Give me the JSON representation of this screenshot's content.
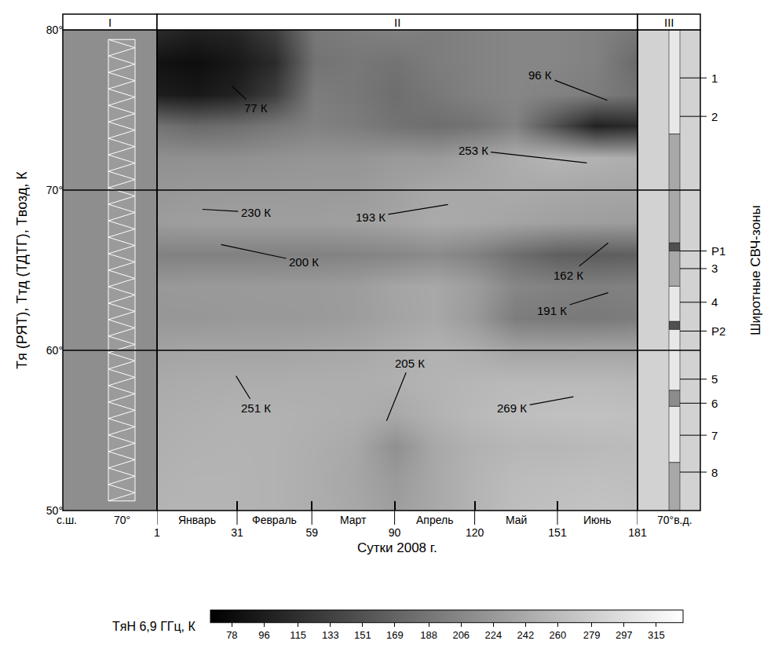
{
  "chart_data": {
    "type": "heatmap",
    "x_label": "Сутки 2008 г.",
    "y_label": "Tя (РЯТ), Tтд (ТДТГ), Tвозд, К",
    "x": [
      1,
      15,
      30,
      45,
      60,
      75,
      90,
      105,
      120,
      135,
      150,
      165,
      181
    ],
    "y": [
      50,
      52,
      54,
      56,
      58,
      60,
      62,
      64,
      66,
      68,
      70,
      72,
      74,
      76,
      78,
      80
    ],
    "z": [
      [
        252,
        253,
        252,
        250,
        245,
        240,
        230,
        240,
        252,
        262,
        265,
        268,
        266
      ],
      [
        250,
        252,
        252,
        250,
        245,
        238,
        225,
        240,
        252,
        260,
        262,
        264,
        262
      ],
      [
        248,
        250,
        251,
        250,
        246,
        240,
        215,
        240,
        250,
        255,
        255,
        258,
        260
      ],
      [
        246,
        248,
        250,
        250,
        248,
        246,
        240,
        250,
        258,
        262,
        265,
        266,
        264
      ],
      [
        242,
        244,
        245,
        245,
        246,
        246,
        248,
        252,
        255,
        258,
        258,
        258,
        256
      ],
      [
        235,
        236,
        236,
        236,
        238,
        240,
        245,
        250,
        245,
        235,
        235,
        236,
        236
      ],
      [
        222,
        222,
        224,
        224,
        225,
        228,
        235,
        240,
        225,
        195,
        192,
        191,
        195
      ],
      [
        224,
        225,
        225,
        226,
        226,
        228,
        236,
        240,
        228,
        205,
        200,
        198,
        200
      ],
      [
        200,
        200,
        200,
        200,
        200,
        202,
        205,
        210,
        200,
        180,
        165,
        162,
        165
      ],
      [
        228,
        230,
        230,
        230,
        230,
        232,
        236,
        242,
        240,
        236,
        232,
        230,
        228
      ],
      [
        222,
        224,
        225,
        225,
        226,
        226,
        232,
        240,
        240,
        242,
        240,
        238,
        238
      ],
      [
        215,
        215,
        215,
        218,
        220,
        220,
        225,
        225,
        235,
        245,
        253,
        250,
        245
      ],
      [
        185,
        175,
        180,
        190,
        200,
        195,
        185,
        180,
        185,
        200,
        150,
        100,
        110
      ],
      [
        95,
        90,
        100,
        130,
        195,
        190,
        180,
        190,
        200,
        205,
        200,
        195,
        185
      ],
      [
        85,
        80,
        90,
        110,
        185,
        190,
        185,
        195,
        200,
        205,
        205,
        200,
        175
      ],
      [
        110,
        100,
        105,
        130,
        190,
        195,
        200,
        195,
        200,
        205,
        205,
        200,
        190
      ]
    ],
    "xlim": [
      1,
      181
    ],
    "xticks": [
      1,
      31,
      59,
      90,
      120,
      151,
      181
    ],
    "ylim": [
      50,
      80
    ],
    "yticks": [
      {
        "value": 50,
        "label": "50°"
      },
      {
        "value": 60,
        "label": "60°"
      },
      {
        "value": 70,
        "label": "70°"
      },
      {
        "value": 80,
        "label": "80°"
      }
    ],
    "months": [
      "Январь",
      "Февраль",
      "Март",
      "Апрель",
      "Май",
      "Июнь"
    ],
    "colorbar_label": "TяH 6,9 ГГц, К",
    "colorbar_range": [
      66,
      330
    ],
    "colorbar_ticks": [
      78,
      96,
      115,
      133,
      151,
      169,
      188,
      206,
      224,
      242,
      260,
      279,
      297,
      315
    ],
    "reference_lines": [
      60,
      70
    ],
    "annotations": [
      {
        "text": "77 К",
        "x": 29,
        "y": 76.5,
        "label_x": 38,
        "label_y": 75.1
      },
      {
        "text": "96 К",
        "x": 169.7,
        "y": 75.6,
        "label_x": 144.6,
        "label_y": 77.2
      },
      {
        "text": "253 К",
        "x": 162,
        "y": 71.7,
        "label_x": 119.4,
        "label_y": 72.5
      },
      {
        "text": "230 К",
        "x": 18,
        "y": 68.8,
        "label_x": 38,
        "label_y": 68.6
      },
      {
        "text": "193 К",
        "x": 110,
        "y": 69.1,
        "label_x": 81,
        "label_y": 68.3
      },
      {
        "text": "200 К",
        "x": 25,
        "y": 66.6,
        "label_x": 56,
        "label_y": 65.5
      },
      {
        "text": "162 К",
        "x": 170,
        "y": 66.7,
        "label_x": 155,
        "label_y": 64.7
      },
      {
        "text": "191 К",
        "x": 170,
        "y": 63.6,
        "label_x": 149,
        "label_y": 62.5
      },
      {
        "text": "251 К",
        "x": 30.6,
        "y": 58.4,
        "label_x": 38,
        "label_y": 56.4
      },
      {
        "text": "205 К",
        "x": 87,
        "y": 55.6,
        "label_x": 95.7,
        "label_y": 59.2
      },
      {
        "text": "269 К",
        "x": 157,
        "y": 57.1,
        "label_x": 134,
        "label_y": 56.4
      }
    ],
    "panels": [
      {
        "label": "I",
        "bottom_text": [
          "с.ш.",
          "70°"
        ]
      },
      {
        "label": "II"
      },
      {
        "label": "III",
        "bottom_text": [
          "70°в.д."
        ]
      }
    ],
    "zones_title": "Широтные СВЧ-зоны",
    "zones": [
      {
        "label": "1",
        "from": 73.5,
        "to": 80,
        "label_lat": 77,
        "color": "#e8e8e8"
      },
      {
        "label": "2",
        "from": 66.7,
        "to": 73.5,
        "label_lat": 74.6,
        "color": "#a8a8a8"
      },
      {
        "label": "Р1",
        "from": 66.2,
        "to": 66.7,
        "label_lat": 66.2,
        "color": "#505050"
      },
      {
        "label": "3",
        "from": 64,
        "to": 66.2,
        "label_lat": 65.1,
        "color": "#a8a8a8"
      },
      {
        "label": "4",
        "from": 61.8,
        "to": 64,
        "label_lat": 63,
        "color": "#e8e8e8"
      },
      {
        "label": "Р2",
        "from": 61.3,
        "to": 61.8,
        "label_lat": 61.2,
        "color": "#505050"
      },
      {
        "label": "5",
        "from": 57.5,
        "to": 61.3,
        "label_lat": 58.2,
        "color": "#e8e8e8"
      },
      {
        "label": "6",
        "from": 56.5,
        "to": 57.5,
        "label_lat": 56.7,
        "color": "#8c8c8c"
      },
      {
        "label": "7",
        "from": 53,
        "to": 56.5,
        "label_lat": 54.7,
        "color": "#e8e8e8"
      },
      {
        "label": "8",
        "from": 50,
        "to": 53,
        "label_lat": 52.4,
        "color": "#a8a8a8"
      }
    ]
  }
}
